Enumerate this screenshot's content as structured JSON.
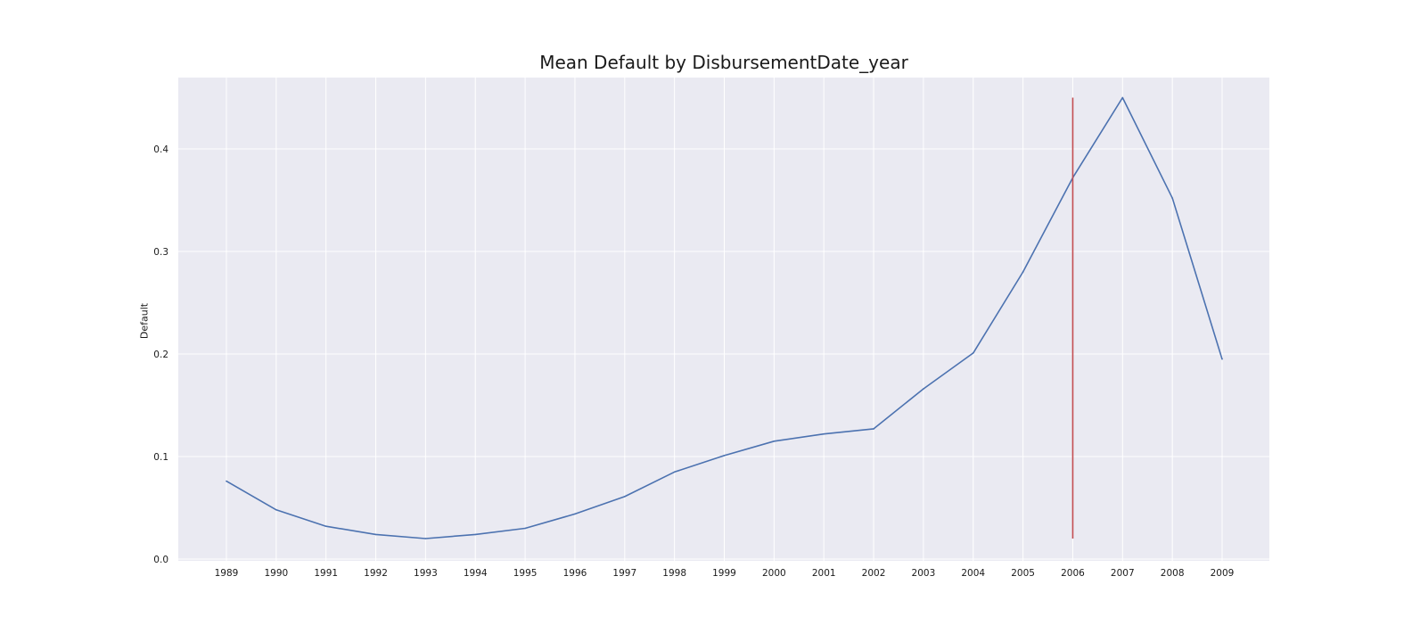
{
  "chart_data": {
    "type": "line",
    "title": "Mean Default by DisbursementDate_year",
    "xlabel": "",
    "ylabel": "Default",
    "categories": [
      "1989",
      "1990",
      "1991",
      "1992",
      "1993",
      "1994",
      "1995",
      "1996",
      "1997",
      "1998",
      "1999",
      "2000",
      "2001",
      "2002",
      "2003",
      "2004",
      "2005",
      "2006",
      "2007",
      "2008",
      "2009"
    ],
    "series": [
      {
        "values": [
          0.076,
          0.048,
          0.032,
          0.024,
          0.02,
          0.024,
          0.03,
          0.044,
          0.061,
          0.085,
          0.101,
          0.115,
          0.122,
          0.127,
          0.166,
          0.201,
          0.28,
          0.372,
          0.45,
          0.352,
          0.195
        ],
        "color": "#4c72b0"
      }
    ],
    "vertical_line": {
      "x": "2006",
      "ymin": 0.02,
      "ymax": 0.45,
      "color": "#c44e52"
    },
    "ylim": [
      0.0,
      0.45
    ],
    "yticks": [
      0.0,
      0.1,
      0.2,
      0.3,
      0.4
    ],
    "ytick_labels": [
      "0.0",
      "0.1",
      "0.2",
      "0.3",
      "0.4"
    ],
    "grid": true,
    "style": {
      "plot_background": "#eaeaf2",
      "grid_color": "#ffffff"
    }
  }
}
